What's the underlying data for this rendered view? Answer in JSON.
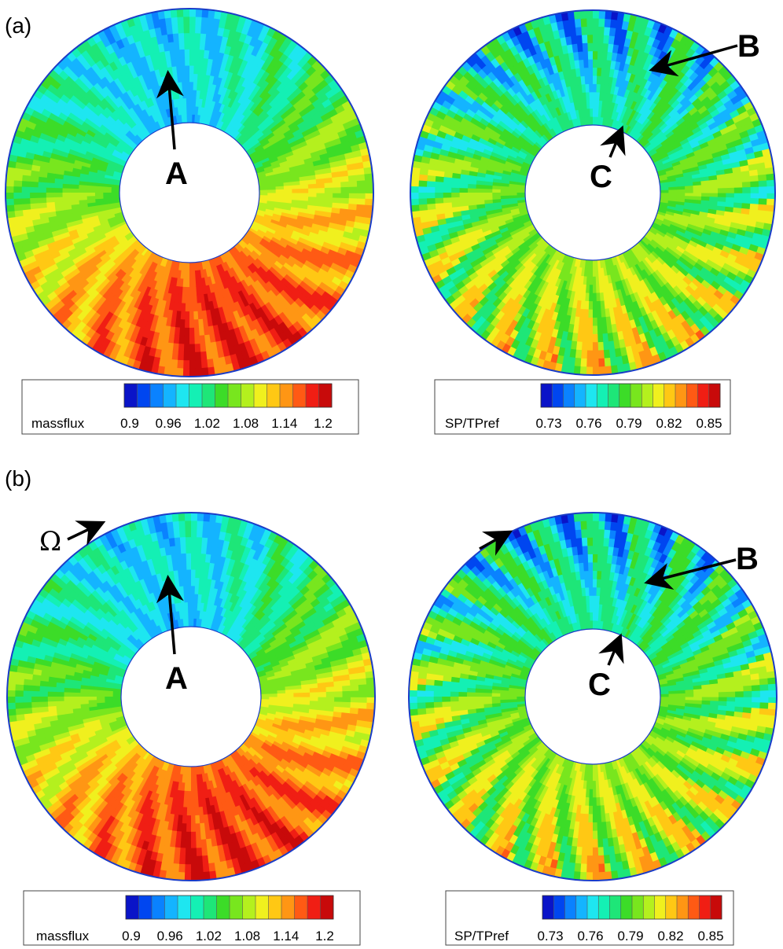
{
  "panels": [
    {
      "label": "(a)",
      "plots": [
        {
          "id": "a-massflux",
          "field": "massflux",
          "markers": [
            "A"
          ],
          "legend": {
            "name": "massflux",
            "ticks": [
              "0.9",
              "0.96",
              "1.02",
              "1.08",
              "1.14",
              "1.2"
            ]
          }
        },
        {
          "id": "a-sp",
          "field": "SP/TPref",
          "markers": [
            "B",
            "C"
          ],
          "legend": {
            "name": "SP/TPref",
            "ticks": [
              "0.73",
              "0.76",
              "0.79",
              "0.82",
              "0.85"
            ]
          }
        }
      ]
    },
    {
      "label": "(b)",
      "rotation_symbol": "Ω",
      "plots": [
        {
          "id": "b-massflux",
          "field": "massflux",
          "markers": [
            "A"
          ],
          "legend": {
            "name": "massflux",
            "ticks": [
              "0.9",
              "0.96",
              "1.02",
              "1.08",
              "1.14",
              "1.2"
            ]
          }
        },
        {
          "id": "b-sp",
          "field": "SP/TPref",
          "markers": [
            "B",
            "C"
          ],
          "legend": {
            "name": "SP/TPref",
            "ticks": [
              "0.73",
              "0.76",
              "0.79",
              "0.82",
              "0.85"
            ]
          }
        }
      ]
    }
  ],
  "colormap": [
    "#0a14c8",
    "#0046f0",
    "#0a82ff",
    "#14b4ff",
    "#1ee6f0",
    "#14f0b4",
    "#1ee678",
    "#3cdc28",
    "#78e61e",
    "#b4f01e",
    "#f0f01e",
    "#ffc814",
    "#ff9614",
    "#ff5a14",
    "#f01e14",
    "#c80a0a"
  ]
}
